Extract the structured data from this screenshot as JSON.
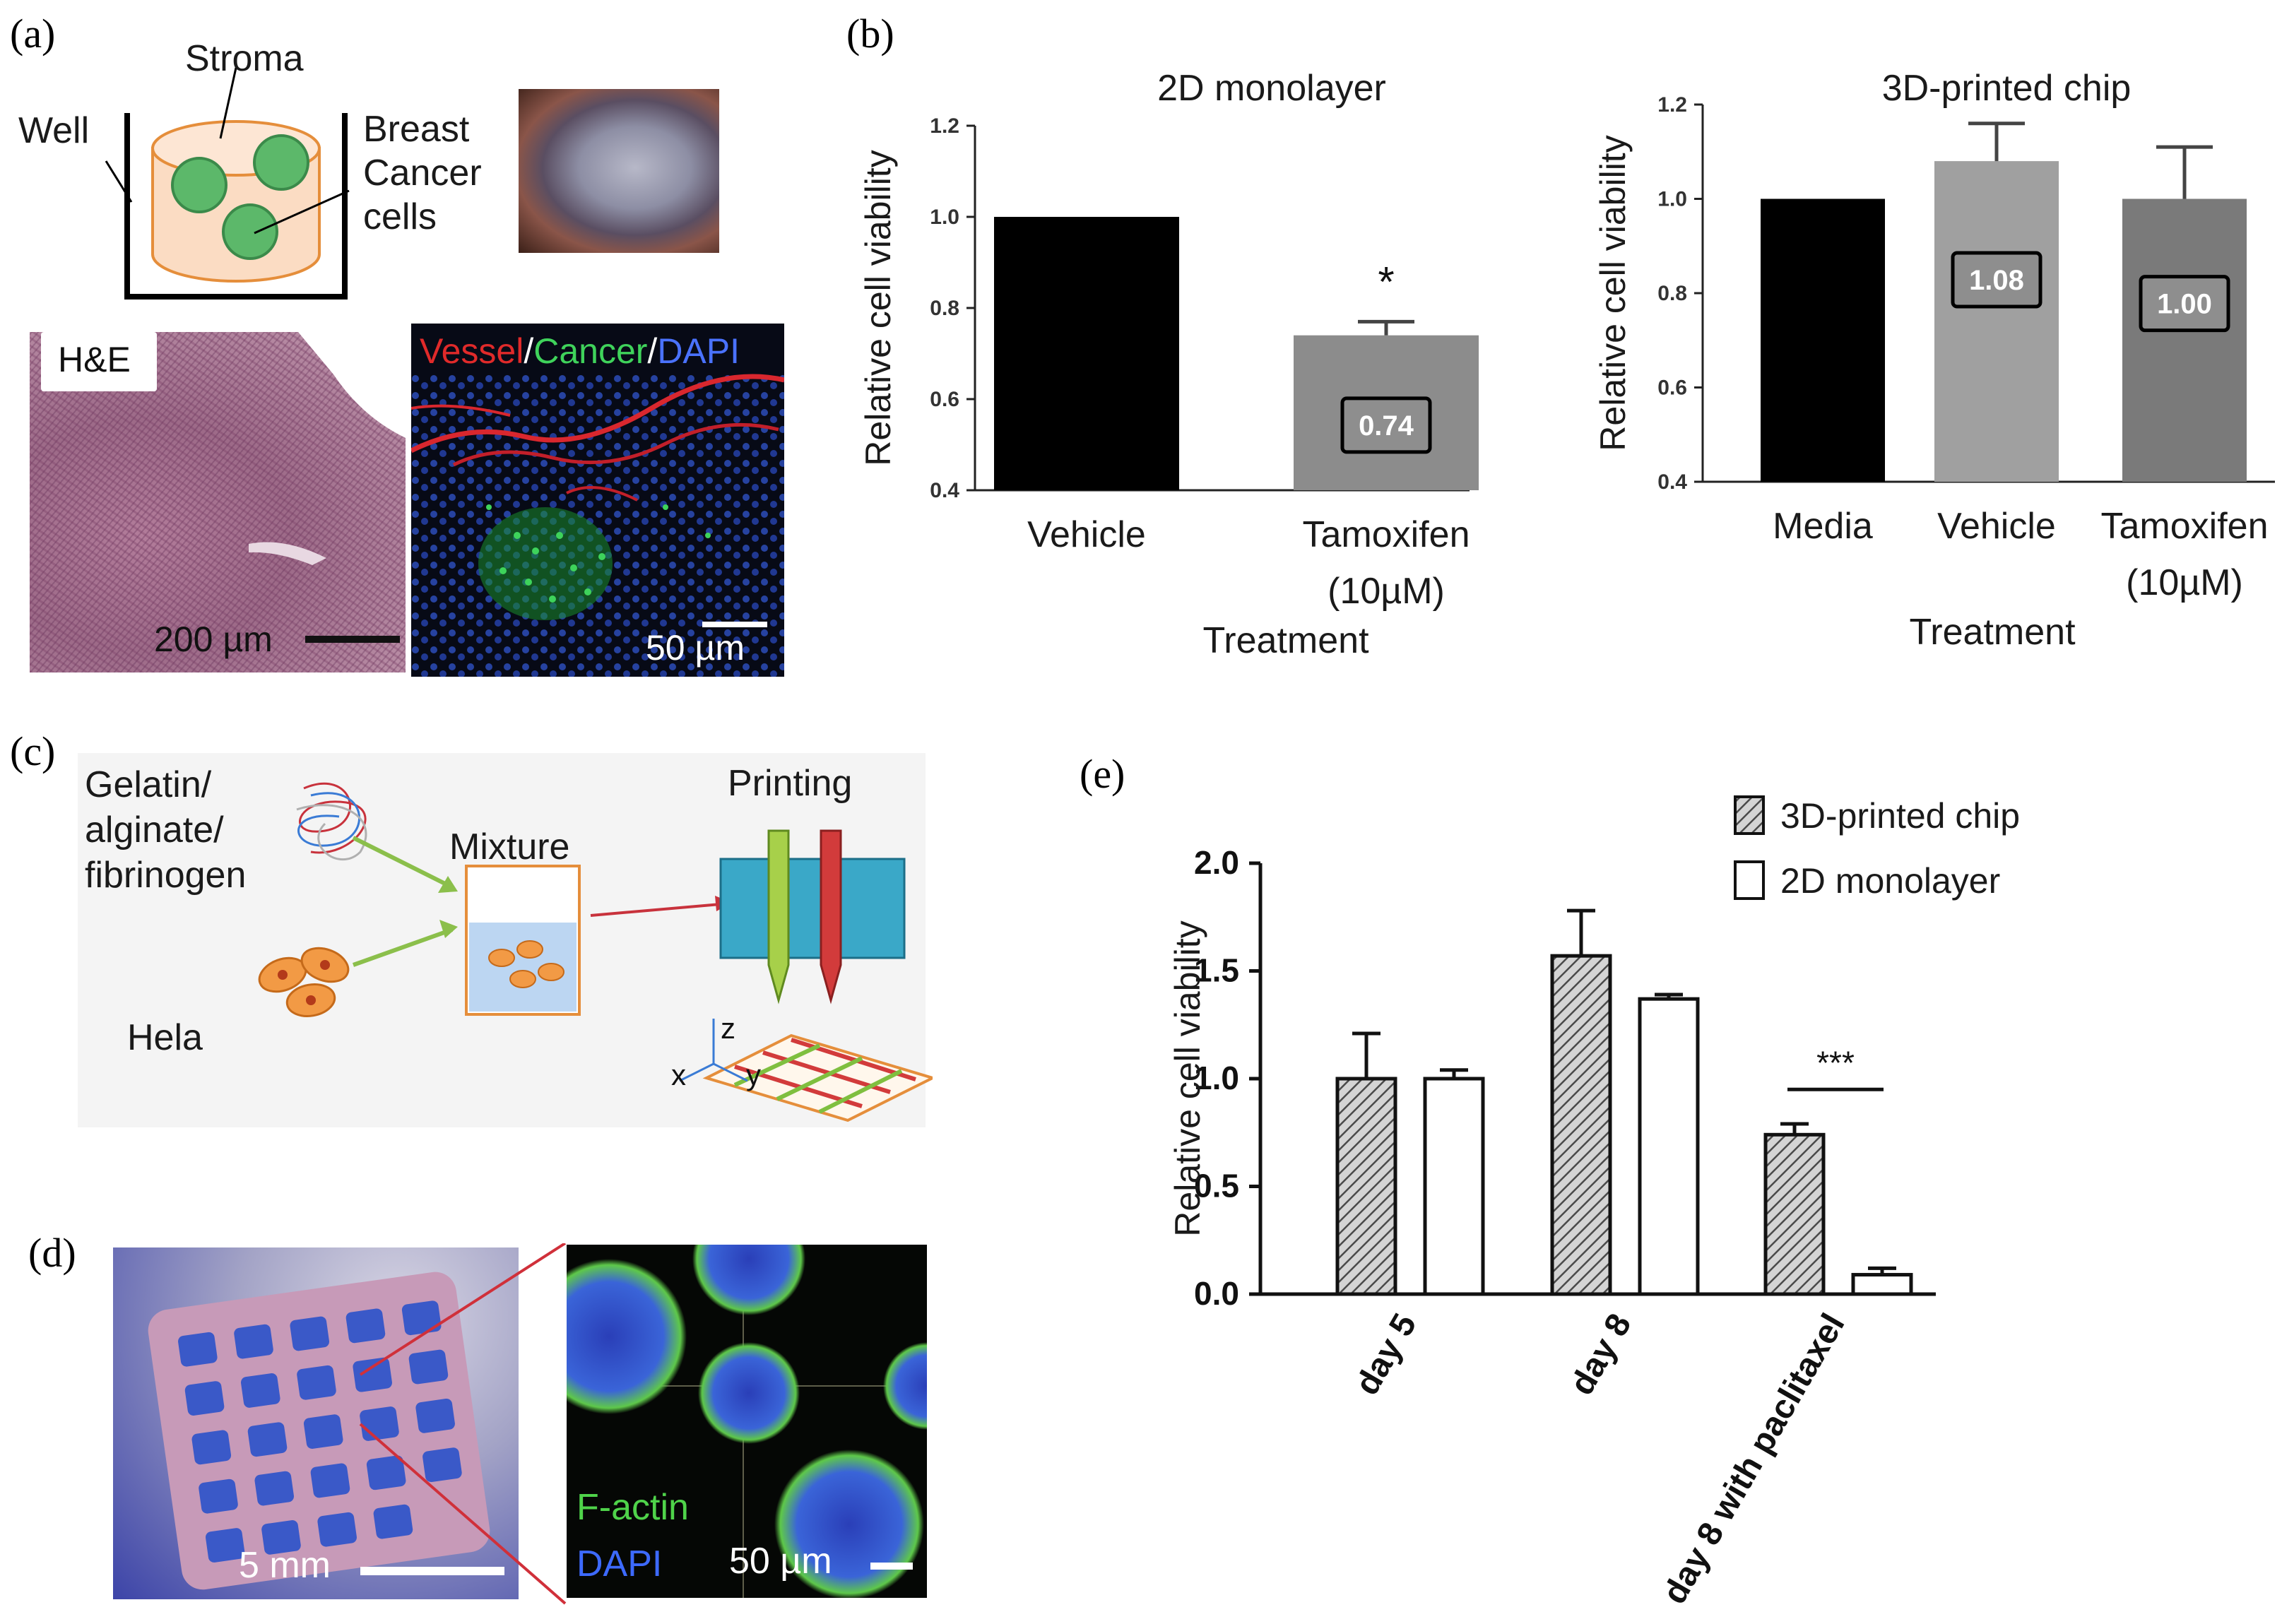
{
  "panels": {
    "a": {
      "label": "(a)",
      "schematic": {
        "stroma": "Stroma",
        "well": "Well",
        "cancer_line1": "Breast",
        "cancer_line2": "Cancer",
        "cancer_line3": "cells"
      },
      "he_label": "H&E",
      "he_scale": "200 µm",
      "fluor": {
        "vessel": "Vessel",
        "sep1": "/",
        "cancer": "Cancer",
        "sep2": "/",
        "dapi": "DAPI",
        "scale": "50 µm"
      }
    },
    "b": {
      "label": "(b)"
    },
    "c": {
      "label": "(c)",
      "gel1": "Gelatin/",
      "gel2": "alginate/",
      "gel3": "fibrinogen",
      "hela": "Hela",
      "mixture": "Mixture",
      "printing": "Printing",
      "ax_z": "z",
      "ax_x": "x",
      "ax_y": "y"
    },
    "d": {
      "label": "(d)",
      "scale_mm": "5 mm",
      "factin": "F-actin",
      "dapi": "DAPI",
      "scale_um": "50 µm"
    },
    "e": {
      "label": "(e)"
    }
  },
  "chart_data": [
    {
      "id": "b-left",
      "type": "bar",
      "title": "2D monolayer",
      "xlabel": "Treatment",
      "ylabel": "Relative cell viability",
      "ylim": [
        0.4,
        1.2
      ],
      "yticks": [
        "0.4",
        "0.6",
        "0.8",
        "1.0",
        "1.2"
      ],
      "categories": [
        "Vehicle",
        "Tamoxifen (10µM)"
      ],
      "cat_lines": [
        [
          "Vehicle"
        ],
        [
          "Tamoxifen",
          "(10µM)"
        ]
      ],
      "values": [
        1.0,
        0.74
      ],
      "errors": [
        0,
        0.03
      ],
      "colors": [
        "#000000",
        "#8c8c8c"
      ],
      "value_labels": [
        "",
        "0.74"
      ],
      "annotations": [
        "",
        "*"
      ]
    },
    {
      "id": "b-right",
      "type": "bar",
      "title": "3D-printed chip",
      "xlabel": "Treatment",
      "ylabel": "Relative cell viability",
      "ylim": [
        0.4,
        1.2
      ],
      "yticks": [
        "0.4",
        "0.6",
        "0.8",
        "1.0",
        "1.2"
      ],
      "categories": [
        "Media",
        "Vehicle",
        "Tamoxifen (10µM)"
      ],
      "cat_lines": [
        [
          "Media"
        ],
        [
          "Vehicle"
        ],
        [
          "Tamoxifen",
          "(10µM)"
        ]
      ],
      "values": [
        1.0,
        1.08,
        1.0
      ],
      "errors": [
        0,
        0.08,
        0.11
      ],
      "colors": [
        "#000000",
        "#a0a0a0",
        "#7a7a7a"
      ],
      "value_labels": [
        "",
        "1.08",
        "1.00"
      ]
    },
    {
      "id": "e",
      "type": "bar",
      "ylabel": "Relative cell viability",
      "ylim": [
        0.0,
        2.0
      ],
      "yticks": [
        "0.0",
        "0.5",
        "1.0",
        "1.5",
        "2.0"
      ],
      "categories": [
        "day 5",
        "day 8",
        "day 8 with paclitaxel"
      ],
      "series": [
        {
          "name": "3D-printed chip",
          "values": [
            1.0,
            1.57,
            0.74
          ],
          "errors": [
            0.21,
            0.21,
            0.05
          ],
          "pattern": "hatch"
        },
        {
          "name": "2D monolayer",
          "values": [
            1.0,
            1.37,
            0.09
          ],
          "errors": [
            0.04,
            0.02,
            0.03
          ],
          "pattern": "white"
        }
      ],
      "significance": "***"
    }
  ]
}
